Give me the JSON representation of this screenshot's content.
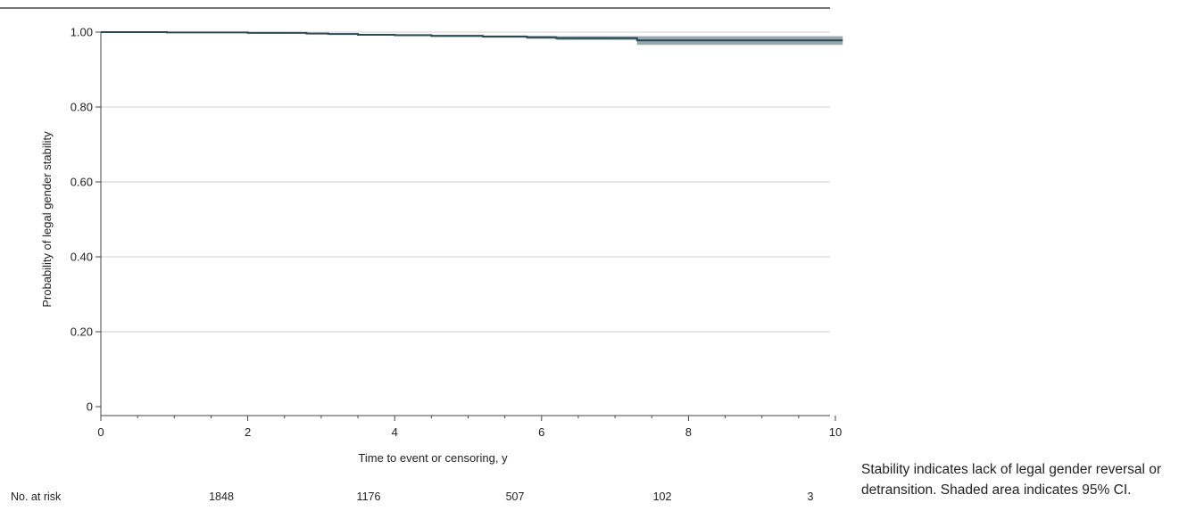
{
  "chart_data": {
    "type": "line",
    "subtype": "kaplan-meier-survival",
    "title": "",
    "xlabel": "Time to event or censoring, y",
    "ylabel": "Probability of legal gender stability",
    "xlim": [
      0,
      10.2
    ],
    "ylim": [
      0,
      1.0
    ],
    "x_ticks": [
      0,
      2,
      4,
      6,
      8,
      10
    ],
    "x_tick_labels": [
      "0",
      "2",
      "4",
      "6",
      "8",
      "10"
    ],
    "y_ticks": [
      0,
      0.2,
      0.4,
      0.6,
      0.8,
      1.0
    ],
    "y_tick_labels": [
      "0",
      "0.20",
      "0.40",
      "0.60",
      "0.80",
      "1.00"
    ],
    "grid": "horizontal",
    "series": [
      {
        "step_x": [
          0,
          0.9,
          2.0,
          2.8,
          3.1,
          3.5,
          4.0,
          4.5,
          5.2,
          5.8,
          6.2,
          7.3,
          10.1
        ],
        "y": [
          1.0,
          0.999,
          0.998,
          0.996,
          0.995,
          0.993,
          0.992,
          0.99,
          0.988,
          0.986,
          0.984,
          0.978,
          0.978
        ],
        "ci_lower": [
          1.0,
          0.998,
          0.997,
          0.995,
          0.993,
          0.991,
          0.989,
          0.987,
          0.985,
          0.982,
          0.979,
          0.966,
          0.966
        ],
        "ci_upper": [
          1.0,
          1.0,
          0.999,
          0.998,
          0.997,
          0.995,
          0.994,
          0.993,
          0.991,
          0.99,
          0.989,
          0.989,
          0.989
        ]
      }
    ],
    "risk_table": {
      "label": "No. at risk",
      "values": [
        "1848",
        "1176",
        "507",
        "102",
        "3"
      ]
    },
    "colors": {
      "line": "#2a4a58",
      "ci": "#97a7af",
      "grid": "#d0d0d0",
      "axis": "#444444"
    }
  },
  "caption": "Stability indicates lack of legal gender reversal or detransition. Shaded area indicates 95% CI."
}
